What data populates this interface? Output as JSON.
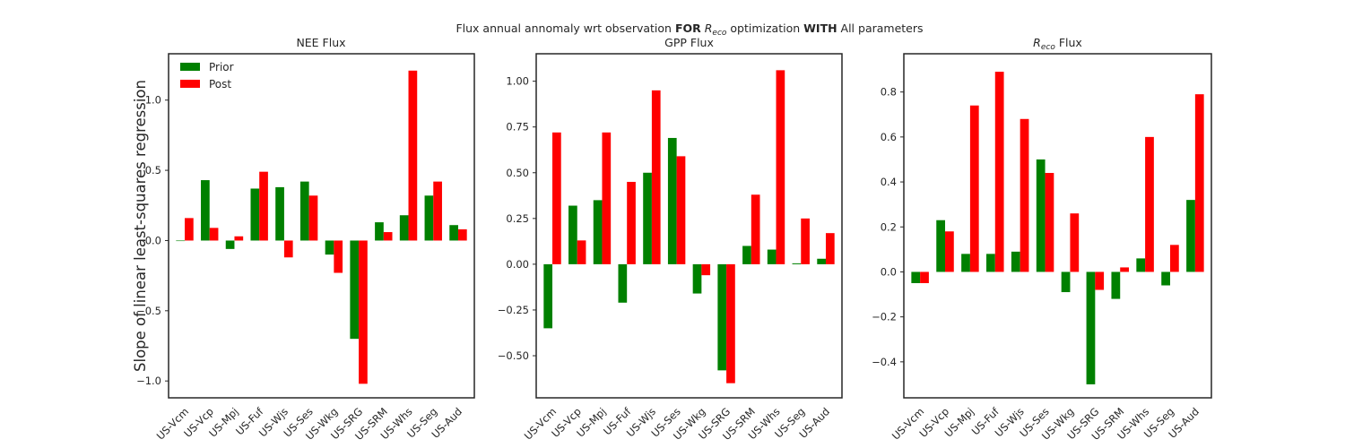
{
  "figure": {
    "suptitle_pre": "Flux annual annomaly wrt observation ",
    "suptitle_bold1": "FOR",
    "suptitle_r": "R",
    "suptitle_sub": "eco",
    "suptitle_mid": " optimization ",
    "suptitle_bold2": "WITH",
    "suptitle_post": " All parameters",
    "ylabel": "Slope of linear least-squares regression"
  },
  "legend": {
    "items": [
      {
        "label": "Prior",
        "color": "#008000"
      },
      {
        "label": "Post",
        "color": "#ff0000"
      }
    ]
  },
  "colors": {
    "prior": "#008000",
    "post": "#ff0000",
    "axis": "#262626"
  },
  "chart_data": [
    {
      "type": "bar",
      "title": "NEE Flux",
      "categories": [
        "US-Vcm",
        "US-Vcp",
        "US-Mpj",
        "US-Fuf",
        "US-Wjs",
        "US-Ses",
        "US-Wkg",
        "US-SRG",
        "US-SRM",
        "US-Whs",
        "US-Seg",
        "US-Aud"
      ],
      "series": [
        {
          "name": "Prior",
          "values": [
            0.0,
            0.43,
            -0.06,
            0.37,
            0.38,
            0.42,
            -0.1,
            -0.7,
            0.13,
            0.18,
            0.32,
            0.11
          ]
        },
        {
          "name": "Post",
          "values": [
            0.16,
            0.09,
            0.03,
            0.49,
            -0.12,
            0.32,
            -0.23,
            -1.02,
            0.06,
            1.21,
            0.42,
            0.08
          ]
        }
      ],
      "yticks": [
        -1.0,
        -0.5,
        0.0,
        0.5,
        1.0
      ],
      "ytick_labels": [
        "−1.0",
        "−0.5",
        "0.0",
        "0.5",
        "1.0"
      ],
      "ylim": [
        -1.12,
        1.33
      ],
      "legend": "top-left"
    },
    {
      "type": "bar",
      "title": "GPP Flux",
      "categories": [
        "US-Vcm",
        "US-Vcp",
        "US-Mpj",
        "US-Fuf",
        "US-Wjs",
        "US-Ses",
        "US-Wkg",
        "US-SRG",
        "US-SRM",
        "US-Whs",
        "US-Seg",
        "US-Aud"
      ],
      "series": [
        {
          "name": "Prior",
          "values": [
            -0.35,
            0.32,
            0.35,
            -0.21,
            0.5,
            0.69,
            -0.16,
            -0.58,
            0.1,
            0.08,
            0.005,
            0.03
          ]
        },
        {
          "name": "Post",
          "values": [
            0.72,
            0.13,
            0.72,
            0.45,
            0.95,
            0.59,
            -0.06,
            -0.65,
            0.38,
            1.06,
            0.25,
            0.17
          ]
        }
      ],
      "yticks": [
        -0.5,
        -0.25,
        0.0,
        0.25,
        0.5,
        0.75,
        1.0
      ],
      "ytick_labels": [
        "−0.50",
        "−0.25",
        "0.00",
        "0.25",
        "0.50",
        "0.75",
        "1.00"
      ],
      "ylim": [
        -0.73,
        1.15
      ]
    },
    {
      "type": "bar",
      "title_r": "R",
      "title_sub": "eco",
      "title_rest": " Flux",
      "categories": [
        "US-Vcm",
        "US-Vcp",
        "US-Mpj",
        "US-Fuf",
        "US-Wjs",
        "US-Ses",
        "US-Wkg",
        "US-SRG",
        "US-SRM",
        "US-Whs",
        "US-Seg",
        "US-Aud"
      ],
      "series": [
        {
          "name": "Prior",
          "values": [
            -0.05,
            0.23,
            0.08,
            0.08,
            0.09,
            0.5,
            -0.09,
            -0.5,
            -0.12,
            0.06,
            -0.06,
            0.32
          ]
        },
        {
          "name": "Post",
          "values": [
            -0.05,
            0.18,
            0.74,
            0.89,
            0.68,
            0.44,
            0.26,
            -0.08,
            0.02,
            0.6,
            0.12,
            0.79
          ]
        }
      ],
      "yticks": [
        -0.4,
        -0.2,
        0.0,
        0.2,
        0.4,
        0.6,
        0.8
      ],
      "ytick_labels": [
        "−0.4",
        "−0.2",
        "0.0",
        "0.2",
        "0.4",
        "0.6",
        "0.8"
      ],
      "ylim": [
        -0.56,
        0.97
      ]
    }
  ]
}
